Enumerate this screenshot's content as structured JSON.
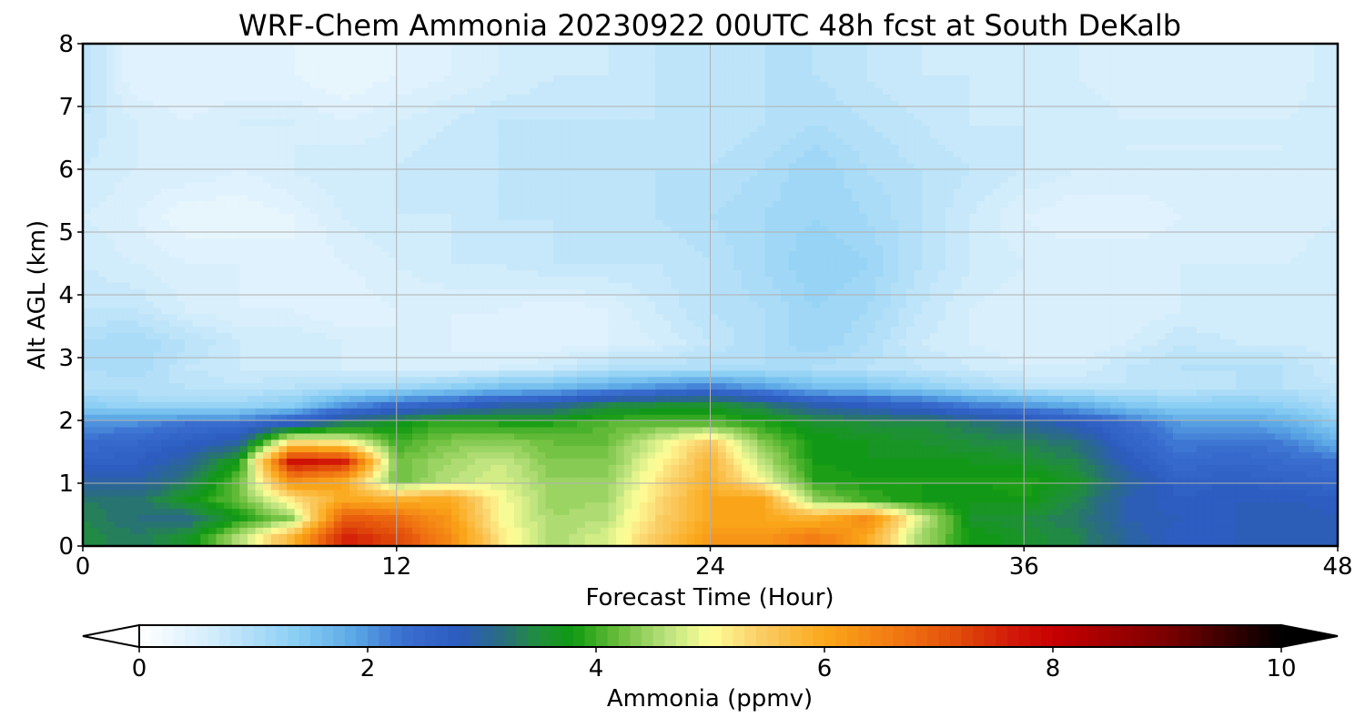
{
  "chart_data": {
    "type": "heatmap",
    "title": "WRF-Chem Ammonia  20230922 00UTC 48h fcst at South DeKalb",
    "xlabel": "Forecast Time (Hour)",
    "ylabel": "Alt AGL (km)",
    "xlim": [
      0,
      48
    ],
    "ylim": [
      0,
      8
    ],
    "x_ticks": [
      0,
      12,
      24,
      36,
      48
    ],
    "y_ticks": [
      0,
      1,
      2,
      3,
      4,
      5,
      6,
      7,
      8
    ],
    "grid": true,
    "colorbar": {
      "label": "Ammonia  (ppmv)",
      "range": [
        0,
        10
      ],
      "ticks": [
        0,
        2,
        4,
        6,
        8,
        10
      ],
      "extend": "both"
    },
    "x": [
      0,
      2,
      4,
      6,
      8,
      10,
      12,
      14,
      16,
      18,
      20,
      22,
      24,
      26,
      28,
      30,
      32,
      34,
      36,
      38,
      40,
      42,
      44,
      46,
      48
    ],
    "y": [
      0.15,
      0.45,
      0.75,
      1.05,
      1.35,
      1.65,
      1.95,
      2.25,
      2.55,
      2.85,
      3.25,
      3.75,
      4.5,
      5.25,
      6.0,
      6.75,
      7.5
    ],
    "z": [
      [
        3.5,
        3.3,
        3.6,
        4.6,
        5.8,
        7.6,
        7.2,
        6.4,
        5.2,
        4.5,
        4.8,
        5.5,
        6.2,
        6.2,
        6.6,
        6.0,
        4.5,
        3.8,
        3.6,
        3.4,
        3.0,
        2.7,
        2.8,
        2.9,
        2.8
      ],
      [
        3.4,
        3.2,
        3.1,
        3.8,
        4.4,
        7.0,
        6.8,
        6.2,
        5.0,
        4.5,
        4.6,
        5.4,
        6.0,
        6.0,
        5.8,
        6.4,
        4.8,
        3.6,
        3.5,
        3.3,
        2.9,
        2.8,
        2.8,
        2.9,
        2.8
      ],
      [
        3.3,
        3.2,
        3.7,
        4.2,
        5.2,
        6.0,
        5.8,
        6.0,
        5.0,
        4.4,
        4.5,
        5.3,
        6.0,
        6.0,
        4.4,
        4.0,
        3.8,
        3.7,
        3.8,
        3.4,
        2.9,
        2.7,
        2.8,
        2.8,
        2.7
      ],
      [
        3.0,
        2.9,
        3.3,
        4.2,
        6.4,
        6.0,
        4.2,
        4.6,
        4.8,
        4.4,
        4.4,
        5.2,
        5.9,
        5.0,
        3.9,
        3.8,
        3.8,
        3.8,
        3.9,
        3.6,
        3.0,
        2.6,
        2.7,
        2.6,
        2.5
      ],
      [
        2.6,
        2.7,
        3.0,
        3.8,
        7.8,
        7.6,
        4.2,
        4.5,
        4.7,
        4.3,
        4.3,
        5.0,
        5.8,
        4.6,
        3.8,
        3.7,
        3.7,
        3.7,
        3.6,
        3.4,
        2.8,
        2.4,
        2.5,
        2.4,
        2.3
      ],
      [
        2.4,
        2.5,
        2.7,
        3.0,
        5.4,
        5.2,
        4.0,
        4.3,
        4.4,
        4.2,
        4.2,
        4.8,
        5.5,
        4.3,
        3.8,
        3.7,
        3.6,
        3.5,
        3.4,
        3.2,
        2.6,
        2.2,
        2.3,
        2.2,
        1.8
      ],
      [
        2.0,
        2.1,
        2.3,
        2.4,
        2.8,
        3.4,
        3.7,
        4.0,
        3.9,
        3.9,
        4.1,
        4.2,
        4.2,
        3.9,
        3.6,
        3.5,
        3.5,
        3.3,
        3.1,
        2.8,
        2.4,
        2.0,
        2.0,
        1.8,
        1.4
      ],
      [
        1.4,
        1.2,
        1.2,
        1.2,
        1.4,
        2.0,
        2.4,
        2.6,
        2.9,
        3.0,
        3.4,
        3.5,
        3.6,
        3.3,
        2.9,
        2.7,
        2.5,
        2.2,
        2.0,
        1.8,
        1.5,
        1.3,
        1.4,
        1.3,
        1.0
      ],
      [
        0.9,
        0.9,
        0.9,
        0.8,
        0.9,
        1.0,
        1.1,
        1.3,
        1.5,
        1.6,
        1.8,
        2.0,
        2.2,
        1.9,
        1.6,
        1.5,
        1.3,
        1.1,
        0.9,
        0.8,
        0.8,
        0.8,
        0.9,
        0.9,
        0.8
      ],
      [
        1.0,
        1.1,
        0.8,
        0.7,
        0.7,
        0.6,
        0.5,
        0.5,
        0.6,
        0.7,
        0.9,
        0.9,
        1.0,
        1.0,
        1.0,
        0.9,
        0.8,
        0.7,
        0.6,
        0.6,
        0.8,
        0.9,
        0.9,
        0.9,
        0.7
      ],
      [
        1.0,
        1.1,
        0.9,
        0.7,
        0.7,
        0.6,
        0.5,
        0.5,
        0.4,
        0.4,
        0.5,
        0.6,
        0.8,
        1.0,
        1.2,
        1.0,
        0.7,
        0.6,
        0.5,
        0.5,
        0.6,
        0.8,
        0.7,
        0.7,
        0.6
      ],
      [
        0.8,
        0.8,
        0.6,
        0.5,
        0.5,
        0.4,
        0.5,
        0.5,
        0.5,
        0.4,
        0.5,
        0.7,
        0.9,
        1.0,
        1.2,
        1.1,
        0.8,
        0.6,
        0.5,
        0.5,
        0.5,
        0.6,
        0.6,
        0.6,
        0.6
      ],
      [
        0.7,
        0.6,
        0.5,
        0.5,
        0.4,
        0.5,
        0.6,
        0.7,
        0.7,
        0.8,
        0.8,
        0.8,
        0.9,
        1.1,
        1.3,
        1.2,
        0.9,
        0.7,
        0.6,
        0.6,
        0.6,
        0.6,
        0.6,
        0.6,
        0.7
      ],
      [
        0.6,
        0.5,
        0.3,
        0.3,
        0.4,
        0.6,
        0.7,
        0.7,
        0.8,
        0.8,
        0.8,
        0.9,
        1.0,
        1.1,
        1.2,
        1.1,
        0.9,
        0.7,
        0.5,
        0.4,
        0.4,
        0.5,
        0.5,
        0.5,
        0.6
      ],
      [
        0.7,
        0.6,
        0.6,
        0.5,
        0.6,
        0.7,
        0.7,
        0.8,
        0.8,
        0.8,
        0.8,
        0.9,
        0.9,
        1.0,
        1.2,
        1.0,
        0.9,
        0.8,
        0.7,
        0.6,
        0.6,
        0.6,
        0.6,
        0.6,
        0.6
      ],
      [
        0.8,
        0.6,
        0.5,
        0.6,
        0.6,
        0.5,
        0.6,
        0.7,
        0.8,
        0.8,
        0.8,
        0.8,
        0.8,
        0.9,
        1.0,
        0.9,
        0.8,
        0.7,
        0.7,
        0.7,
        0.6,
        0.6,
        0.6,
        0.6,
        0.7
      ],
      [
        0.9,
        0.4,
        0.4,
        0.4,
        0.4,
        0.3,
        0.4,
        0.5,
        0.6,
        0.7,
        0.7,
        0.8,
        0.8,
        0.9,
        0.9,
        0.8,
        0.7,
        0.7,
        0.6,
        0.6,
        0.5,
        0.5,
        0.5,
        0.5,
        0.7
      ]
    ]
  },
  "colormap": {
    "stops": [
      [
        0.0,
        "#ffffff"
      ],
      [
        0.6,
        "#d6eefc"
      ],
      [
        1.4,
        "#87cdf3"
      ],
      [
        1.9,
        "#5aa6e4"
      ],
      [
        2.3,
        "#3a6fd0"
      ],
      [
        2.8,
        "#2c5bbf"
      ],
      [
        3.2,
        "#2a6f7c"
      ],
      [
        3.5,
        "#1f8f3a"
      ],
      [
        3.8,
        "#109a10"
      ],
      [
        4.2,
        "#6cbf3c"
      ],
      [
        4.6,
        "#b7e07b"
      ],
      [
        5.0,
        "#ffff99"
      ],
      [
        5.4,
        "#fad06b"
      ],
      [
        6.0,
        "#fba81a"
      ],
      [
        6.6,
        "#f27a13"
      ],
      [
        7.2,
        "#e04a0a"
      ],
      [
        7.6,
        "#d31d0a"
      ],
      [
        8.0,
        "#c80000"
      ],
      [
        9.0,
        "#7a0000"
      ],
      [
        10.0,
        "#000000"
      ]
    ],
    "under": "#ffffff",
    "over": "#000000",
    "levels": 100
  }
}
